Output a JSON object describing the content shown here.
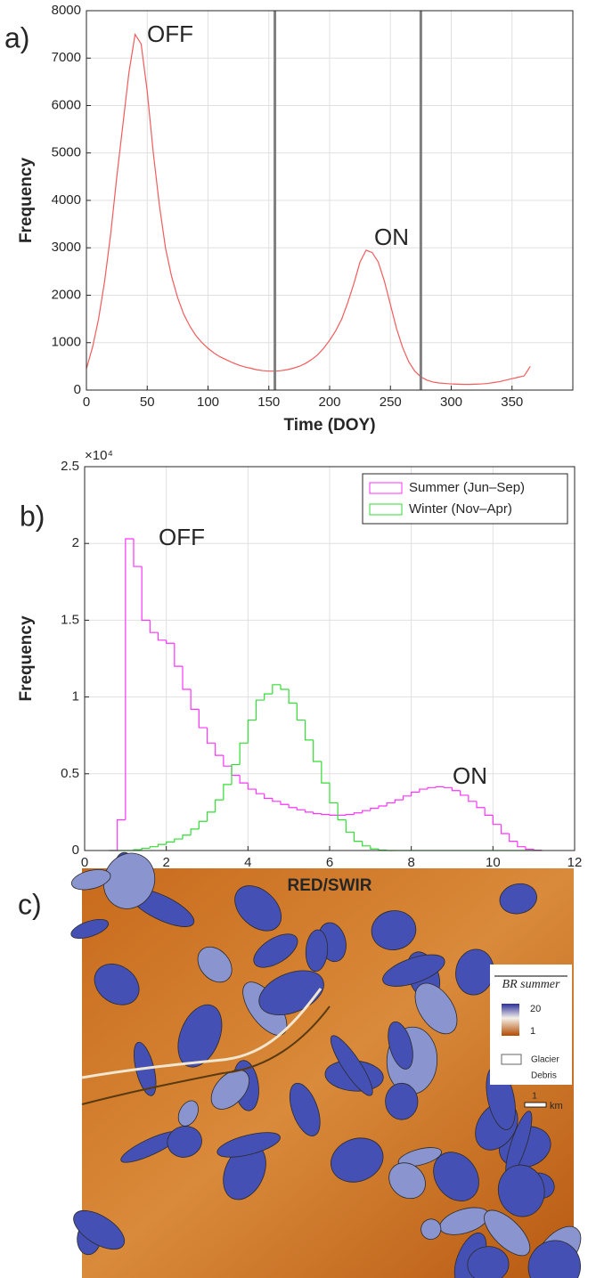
{
  "chart_data": [
    {
      "type": "line",
      "panel_label": "a)",
      "xlabel": "Time (DOY)",
      "ylabel": "Frequency",
      "x": [
        0,
        5,
        10,
        15,
        20,
        25,
        30,
        35,
        40,
        45,
        50,
        55,
        60,
        65,
        70,
        75,
        80,
        85,
        90,
        95,
        100,
        105,
        110,
        115,
        120,
        125,
        130,
        135,
        140,
        145,
        150,
        155,
        160,
        165,
        170,
        175,
        180,
        185,
        190,
        195,
        200,
        205,
        210,
        215,
        220,
        225,
        230,
        235,
        240,
        245,
        250,
        255,
        260,
        265,
        270,
        275,
        280,
        285,
        290,
        295,
        300,
        305,
        310,
        315,
        320,
        325,
        330,
        335,
        340,
        345,
        350,
        355,
        360,
        365
      ],
      "series": [
        {
          "color": "#f25b5b",
          "values": [
            450,
            900,
            1500,
            2300,
            3300,
            4500,
            5600,
            6700,
            7500,
            7300,
            6300,
            5000,
            3900,
            3000,
            2400,
            1950,
            1600,
            1350,
            1150,
            1000,
            880,
            780,
            700,
            640,
            580,
            530,
            490,
            460,
            430,
            410,
            400,
            400,
            410,
            430,
            460,
            500,
            560,
            640,
            740,
            880,
            1050,
            1250,
            1500,
            1850,
            2250,
            2700,
            2950,
            2900,
            2700,
            2300,
            1800,
            1300,
            900,
            600,
            400,
            280,
            210,
            170,
            150,
            140,
            130,
            125,
            120,
            120,
            125,
            130,
            140,
            160,
            180,
            210,
            240,
            270,
            300,
            500
          ]
        }
      ],
      "vlines": [
        155,
        275
      ],
      "vline_color": "#7f7f7f",
      "annotations": [
        "OFF",
        "ON"
      ],
      "xlim": [
        0,
        400
      ],
      "xticks": [
        0,
        50,
        100,
        150,
        200,
        250,
        300,
        350
      ],
      "ylim": [
        0,
        8000
      ],
      "yticks": [
        0,
        1000,
        2000,
        3000,
        4000,
        5000,
        6000,
        7000,
        8000
      ],
      "grid": true
    },
    {
      "type": "histogram",
      "panel_label": "b)",
      "xlabel": "RED/SWIR",
      "ylabel": "Frequency",
      "y_multiplier": "×10⁴",
      "bins": [
        0.6,
        0.8,
        1.0,
        1.2,
        1.4,
        1.6,
        1.8,
        2.0,
        2.2,
        2.4,
        2.6,
        2.8,
        3.0,
        3.2,
        3.4,
        3.6,
        3.8,
        4.0,
        4.2,
        4.4,
        4.6,
        4.8,
        5.0,
        5.2,
        5.4,
        5.6,
        5.8,
        6.0,
        6.2,
        6.4,
        6.6,
        6.8,
        7.0,
        7.2,
        7.4,
        7.6,
        7.8,
        8.0,
        8.2,
        8.4,
        8.6,
        8.8,
        9.0,
        9.2,
        9.4,
        9.6,
        9.8,
        10.0,
        10.2,
        10.4,
        10.6,
        10.8,
        11.0,
        11.2
      ],
      "series": [
        {
          "name": "Summer (Jun–Sep)",
          "color": "#ff33ff",
          "values": [
            0,
            2000,
            20300,
            18500,
            15000,
            14200,
            13700,
            13500,
            12000,
            10500,
            9200,
            8000,
            7000,
            6200,
            5500,
            4900,
            4400,
            4000,
            3700,
            3400,
            3200,
            3000,
            2800,
            2650,
            2500,
            2400,
            2350,
            2300,
            2300,
            2350,
            2450,
            2600,
            2750,
            2900,
            3100,
            3300,
            3550,
            3800,
            4000,
            4100,
            4150,
            4100,
            3900,
            3600,
            3200,
            2800,
            2300,
            1700,
            1100,
            600,
            250,
            80,
            20
          ]
        },
        {
          "name": "Winter (Nov–Apr)",
          "color": "#33dd33",
          "values": [
            0,
            0,
            0,
            50,
            150,
            250,
            400,
            550,
            750,
            1000,
            1400,
            1900,
            2500,
            3300,
            4300,
            5600,
            7000,
            8500,
            9800,
            10200,
            10800,
            10500,
            9600,
            8500,
            7200,
            5800,
            4400,
            3100,
            2000,
            1200,
            600,
            300,
            100,
            30,
            0,
            0,
            0,
            0,
            0,
            0,
            0,
            0,
            0,
            0,
            0,
            0,
            0,
            0,
            0,
            0,
            0,
            0,
            0
          ]
        }
      ],
      "annotations": [
        "OFF",
        "ON"
      ],
      "legend": "top-right",
      "xlim": [
        0,
        12
      ],
      "xticks": [
        0,
        2,
        4,
        6,
        8,
        10,
        12
      ],
      "ylim": [
        0,
        25000
      ],
      "yticks": [
        0,
        {
          "value": 5000,
          "label": "0.5"
        },
        {
          "value": 10000,
          "label": "1"
        },
        {
          "value": 15000,
          "label": "1.5"
        },
        {
          "value": 20000,
          "label": "2"
        },
        {
          "value": 25000,
          "label": "2.5"
        }
      ],
      "grid": true
    }
  ],
  "map": {
    "panel_label": "c)",
    "legend_title": "BR summer",
    "colorbar_max": "20",
    "colorbar_min": "1",
    "glacier": "Glacier",
    "debris": "Debris",
    "scale_value": "1",
    "scale_unit": "km"
  }
}
